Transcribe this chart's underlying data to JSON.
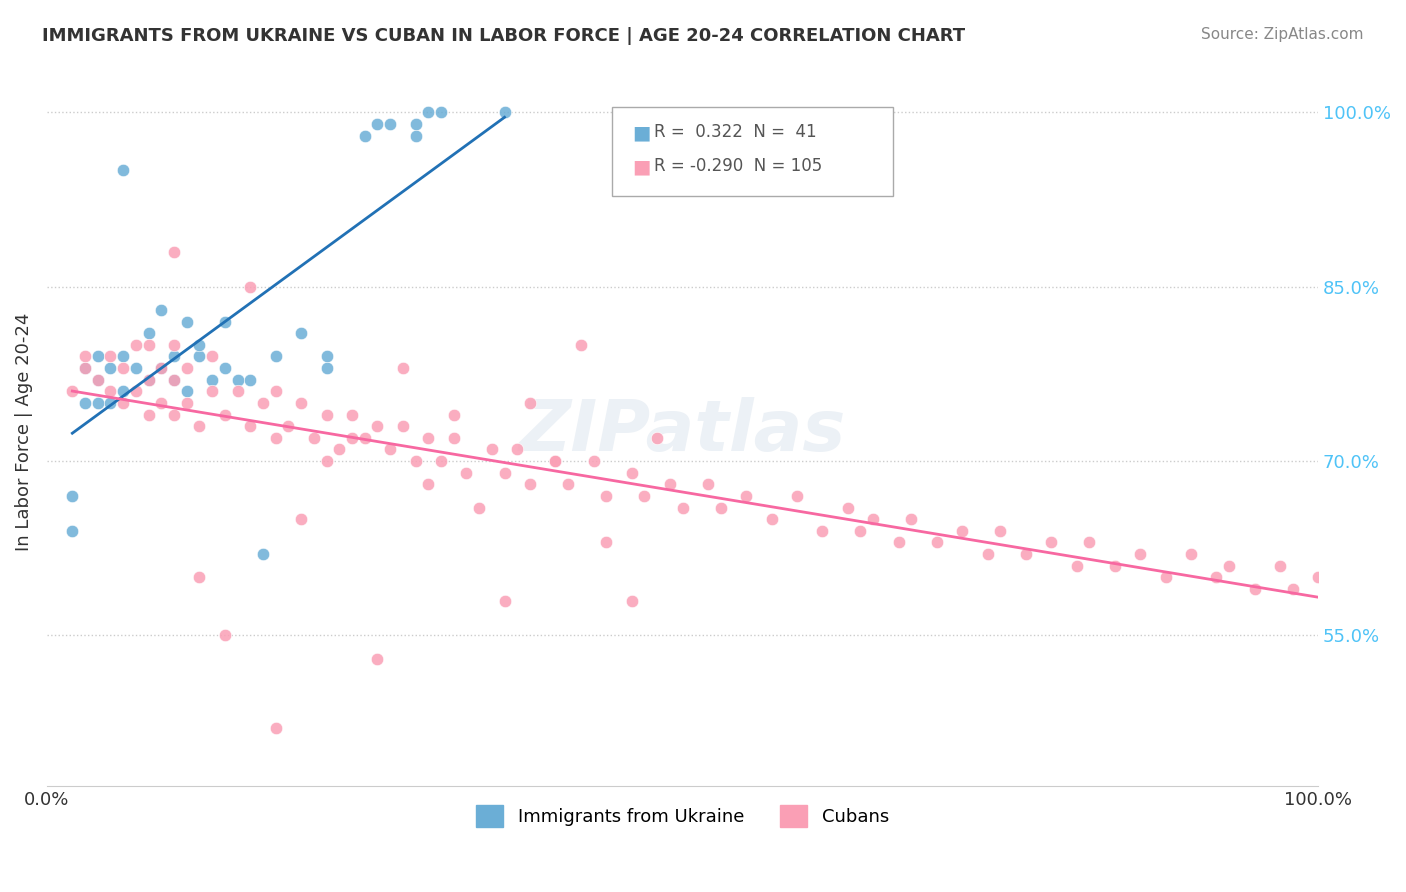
{
  "title": "IMMIGRANTS FROM UKRAINE VS CUBAN IN LABOR FORCE | AGE 20-24 CORRELATION CHART",
  "source": "Source: ZipAtlas.com",
  "xlabel": "",
  "ylabel": "In Labor Force | Age 20-24",
  "xlim": [
    0.0,
    1.0
  ],
  "ylim": [
    0.42,
    1.03
  ],
  "x_ticks": [
    0.0,
    1.0
  ],
  "x_tick_labels": [
    "0.0%",
    "100.0%"
  ],
  "y_ticks": [
    0.55,
    0.7,
    0.85,
    1.0
  ],
  "y_tick_labels": [
    "55.0%",
    "70.0%",
    "85.0%",
    "100.0%"
  ],
  "ukraine_R": 0.322,
  "ukraine_N": 41,
  "cuban_R": -0.29,
  "cuban_N": 105,
  "ukraine_color": "#6baed6",
  "cuban_color": "#fa9fb5",
  "ukraine_line_color": "#2171b5",
  "cuban_line_color": "#f768a1",
  "watermark": "ZIPatlas",
  "ukraine_x": [
    0.02,
    0.02,
    0.03,
    0.03,
    0.04,
    0.04,
    0.04,
    0.05,
    0.05,
    0.06,
    0.06,
    0.06,
    0.07,
    0.08,
    0.08,
    0.09,
    0.09,
    0.1,
    0.1,
    0.11,
    0.11,
    0.12,
    0.12,
    0.13,
    0.14,
    0.14,
    0.15,
    0.16,
    0.17,
    0.18,
    0.2,
    0.22,
    0.22,
    0.25,
    0.26,
    0.27,
    0.29,
    0.29,
    0.3,
    0.31,
    0.36
  ],
  "ukraine_y": [
    0.64,
    0.67,
    0.75,
    0.78,
    0.75,
    0.77,
    0.79,
    0.75,
    0.78,
    0.76,
    0.79,
    0.95,
    0.78,
    0.77,
    0.81,
    0.78,
    0.83,
    0.77,
    0.79,
    0.76,
    0.82,
    0.79,
    0.8,
    0.77,
    0.78,
    0.82,
    0.77,
    0.77,
    0.62,
    0.79,
    0.81,
    0.78,
    0.79,
    0.98,
    0.99,
    0.99,
    0.98,
    0.99,
    1.0,
    1.0,
    1.0
  ],
  "cuban_x": [
    0.02,
    0.03,
    0.03,
    0.04,
    0.05,
    0.05,
    0.06,
    0.06,
    0.07,
    0.07,
    0.08,
    0.08,
    0.08,
    0.09,
    0.09,
    0.1,
    0.1,
    0.1,
    0.11,
    0.11,
    0.12,
    0.13,
    0.13,
    0.14,
    0.15,
    0.16,
    0.17,
    0.18,
    0.18,
    0.19,
    0.2,
    0.21,
    0.22,
    0.23,
    0.24,
    0.25,
    0.26,
    0.27,
    0.28,
    0.29,
    0.3,
    0.31,
    0.32,
    0.33,
    0.35,
    0.36,
    0.37,
    0.38,
    0.4,
    0.41,
    0.43,
    0.44,
    0.46,
    0.47,
    0.49,
    0.5,
    0.52,
    0.53,
    0.55,
    0.57,
    0.59,
    0.61,
    0.63,
    0.64,
    0.65,
    0.67,
    0.68,
    0.7,
    0.72,
    0.74,
    0.75,
    0.77,
    0.79,
    0.81,
    0.82,
    0.84,
    0.86,
    0.88,
    0.9,
    0.92,
    0.93,
    0.95,
    0.97,
    0.98,
    1.0,
    0.1,
    0.12,
    0.14,
    0.16,
    0.18,
    0.2,
    0.22,
    0.24,
    0.26,
    0.28,
    0.3,
    0.32,
    0.34,
    0.36,
    0.38,
    0.4,
    0.42,
    0.44,
    0.46,
    0.48
  ],
  "cuban_y": [
    0.76,
    0.78,
    0.79,
    0.77,
    0.76,
    0.79,
    0.75,
    0.78,
    0.76,
    0.8,
    0.74,
    0.77,
    0.8,
    0.75,
    0.78,
    0.74,
    0.77,
    0.8,
    0.75,
    0.78,
    0.73,
    0.76,
    0.79,
    0.74,
    0.76,
    0.73,
    0.75,
    0.72,
    0.76,
    0.73,
    0.75,
    0.72,
    0.74,
    0.71,
    0.74,
    0.72,
    0.73,
    0.71,
    0.73,
    0.7,
    0.72,
    0.7,
    0.72,
    0.69,
    0.71,
    0.69,
    0.71,
    0.68,
    0.7,
    0.68,
    0.7,
    0.67,
    0.69,
    0.67,
    0.68,
    0.66,
    0.68,
    0.66,
    0.67,
    0.65,
    0.67,
    0.64,
    0.66,
    0.64,
    0.65,
    0.63,
    0.65,
    0.63,
    0.64,
    0.62,
    0.64,
    0.62,
    0.63,
    0.61,
    0.63,
    0.61,
    0.62,
    0.6,
    0.62,
    0.6,
    0.61,
    0.59,
    0.61,
    0.59,
    0.6,
    0.88,
    0.6,
    0.55,
    0.85,
    0.47,
    0.65,
    0.7,
    0.72,
    0.53,
    0.78,
    0.68,
    0.74,
    0.66,
    0.58,
    0.75,
    0.7,
    0.8,
    0.63,
    0.58,
    0.72
  ]
}
